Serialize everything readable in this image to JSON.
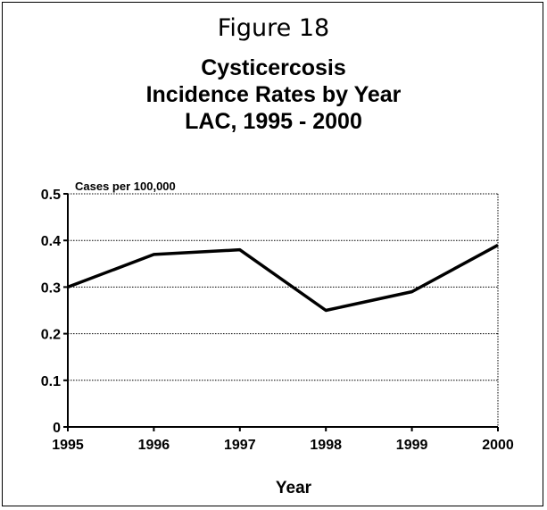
{
  "chart_data": {
    "type": "line",
    "figure_label": "Figure 18",
    "title_lines": [
      "Cysticercosis",
      "Incidence Rates by Year",
      "LAC, 1995 - 2000"
    ],
    "ylabel": "Cases per 100,000",
    "xlabel": "Year",
    "categories": [
      "1995",
      "1996",
      "1997",
      "1998",
      "1999",
      "2000"
    ],
    "series": [
      {
        "values": [
          0.3,
          0.37,
          0.38,
          0.25,
          0.29,
          0.39
        ]
      }
    ],
    "ylim": [
      0,
      0.5
    ],
    "yticks": [
      0,
      0.1,
      0.2,
      0.3,
      0.4,
      0.5
    ],
    "ytick_labels": [
      "0",
      "0.1",
      "0.2",
      "0.3",
      "0.4",
      "0.5"
    ],
    "grid": true,
    "line_color": "#000000"
  }
}
